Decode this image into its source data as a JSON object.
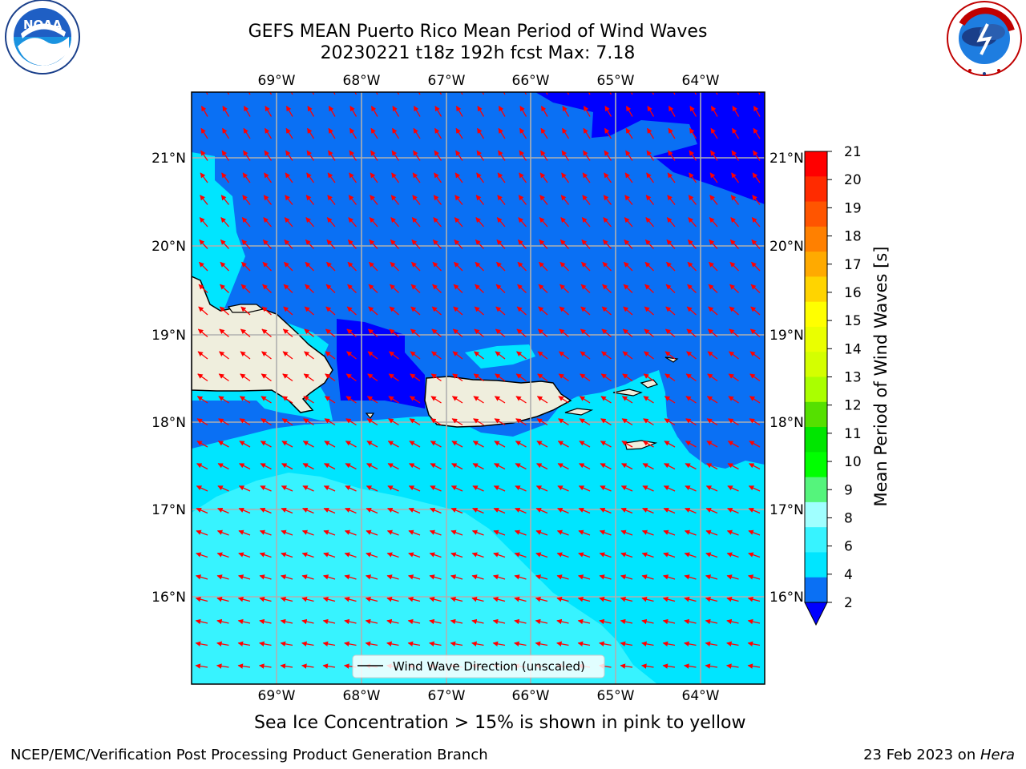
{
  "title": {
    "line1": "GEFS MEAN Puerto Rico Mean Period of Wind Waves",
    "line2": "20230221 t18z 192h fcst   Max: 7.18"
  },
  "map": {
    "lon_labels": [
      "69°W",
      "68°W",
      "67°W",
      "66°W",
      "65°W",
      "64°W"
    ],
    "lat_labels": [
      "21°N",
      "20°N",
      "19°N",
      "18°N",
      "17°N",
      "16°N"
    ],
    "legend_label": "Wind Wave Direction (unscaled)",
    "colors": {
      "band_2_4": "#0a70f4",
      "band_below_2": "#0000ff",
      "band_4_6": "#00e5ff",
      "band_6_8": "#37f3ff",
      "band_8_9": "#a0ffff",
      "land": "#efeedd",
      "arrow": "#ff0000"
    }
  },
  "colorbar": {
    "label": "Mean Period of Wind Waves [s]",
    "ticks": [
      "21",
      "20",
      "19",
      "18",
      "17",
      "16",
      "15",
      "14",
      "13",
      "12",
      "11",
      "10",
      "9",
      "8",
      "6",
      "4",
      "2"
    ],
    "colors": [
      "#ff0000",
      "#ff2b00",
      "#ff5500",
      "#ff8000",
      "#ffaa00",
      "#ffd400",
      "#ffff00",
      "#eaff00",
      "#d4ff00",
      "#aaff00",
      "#55e000",
      "#00e600",
      "#00ff00",
      "#55f47c",
      "#a0ffff",
      "#37f3ff",
      "#00e5ff",
      "#0a70f4"
    ],
    "under_color": "#0000ff"
  },
  "subtitle": "Sea Ice Concentration > 15% is shown in pink to yellow",
  "footer": {
    "left": "NCEP/EMC/Verification Post Processing Product Generation Branch",
    "date": "23 Feb 2023 on ",
    "host": "Hera"
  },
  "logos": {
    "noaa_text": "NOAA",
    "noaa_ring": "NATIONAL OCEANIC AND ATMOSPHERIC ADMINISTRATION · U.S. DEPARTMENT OF COMMERCE",
    "nws_ring": "NATIONAL WEATHER SERVICE"
  }
}
